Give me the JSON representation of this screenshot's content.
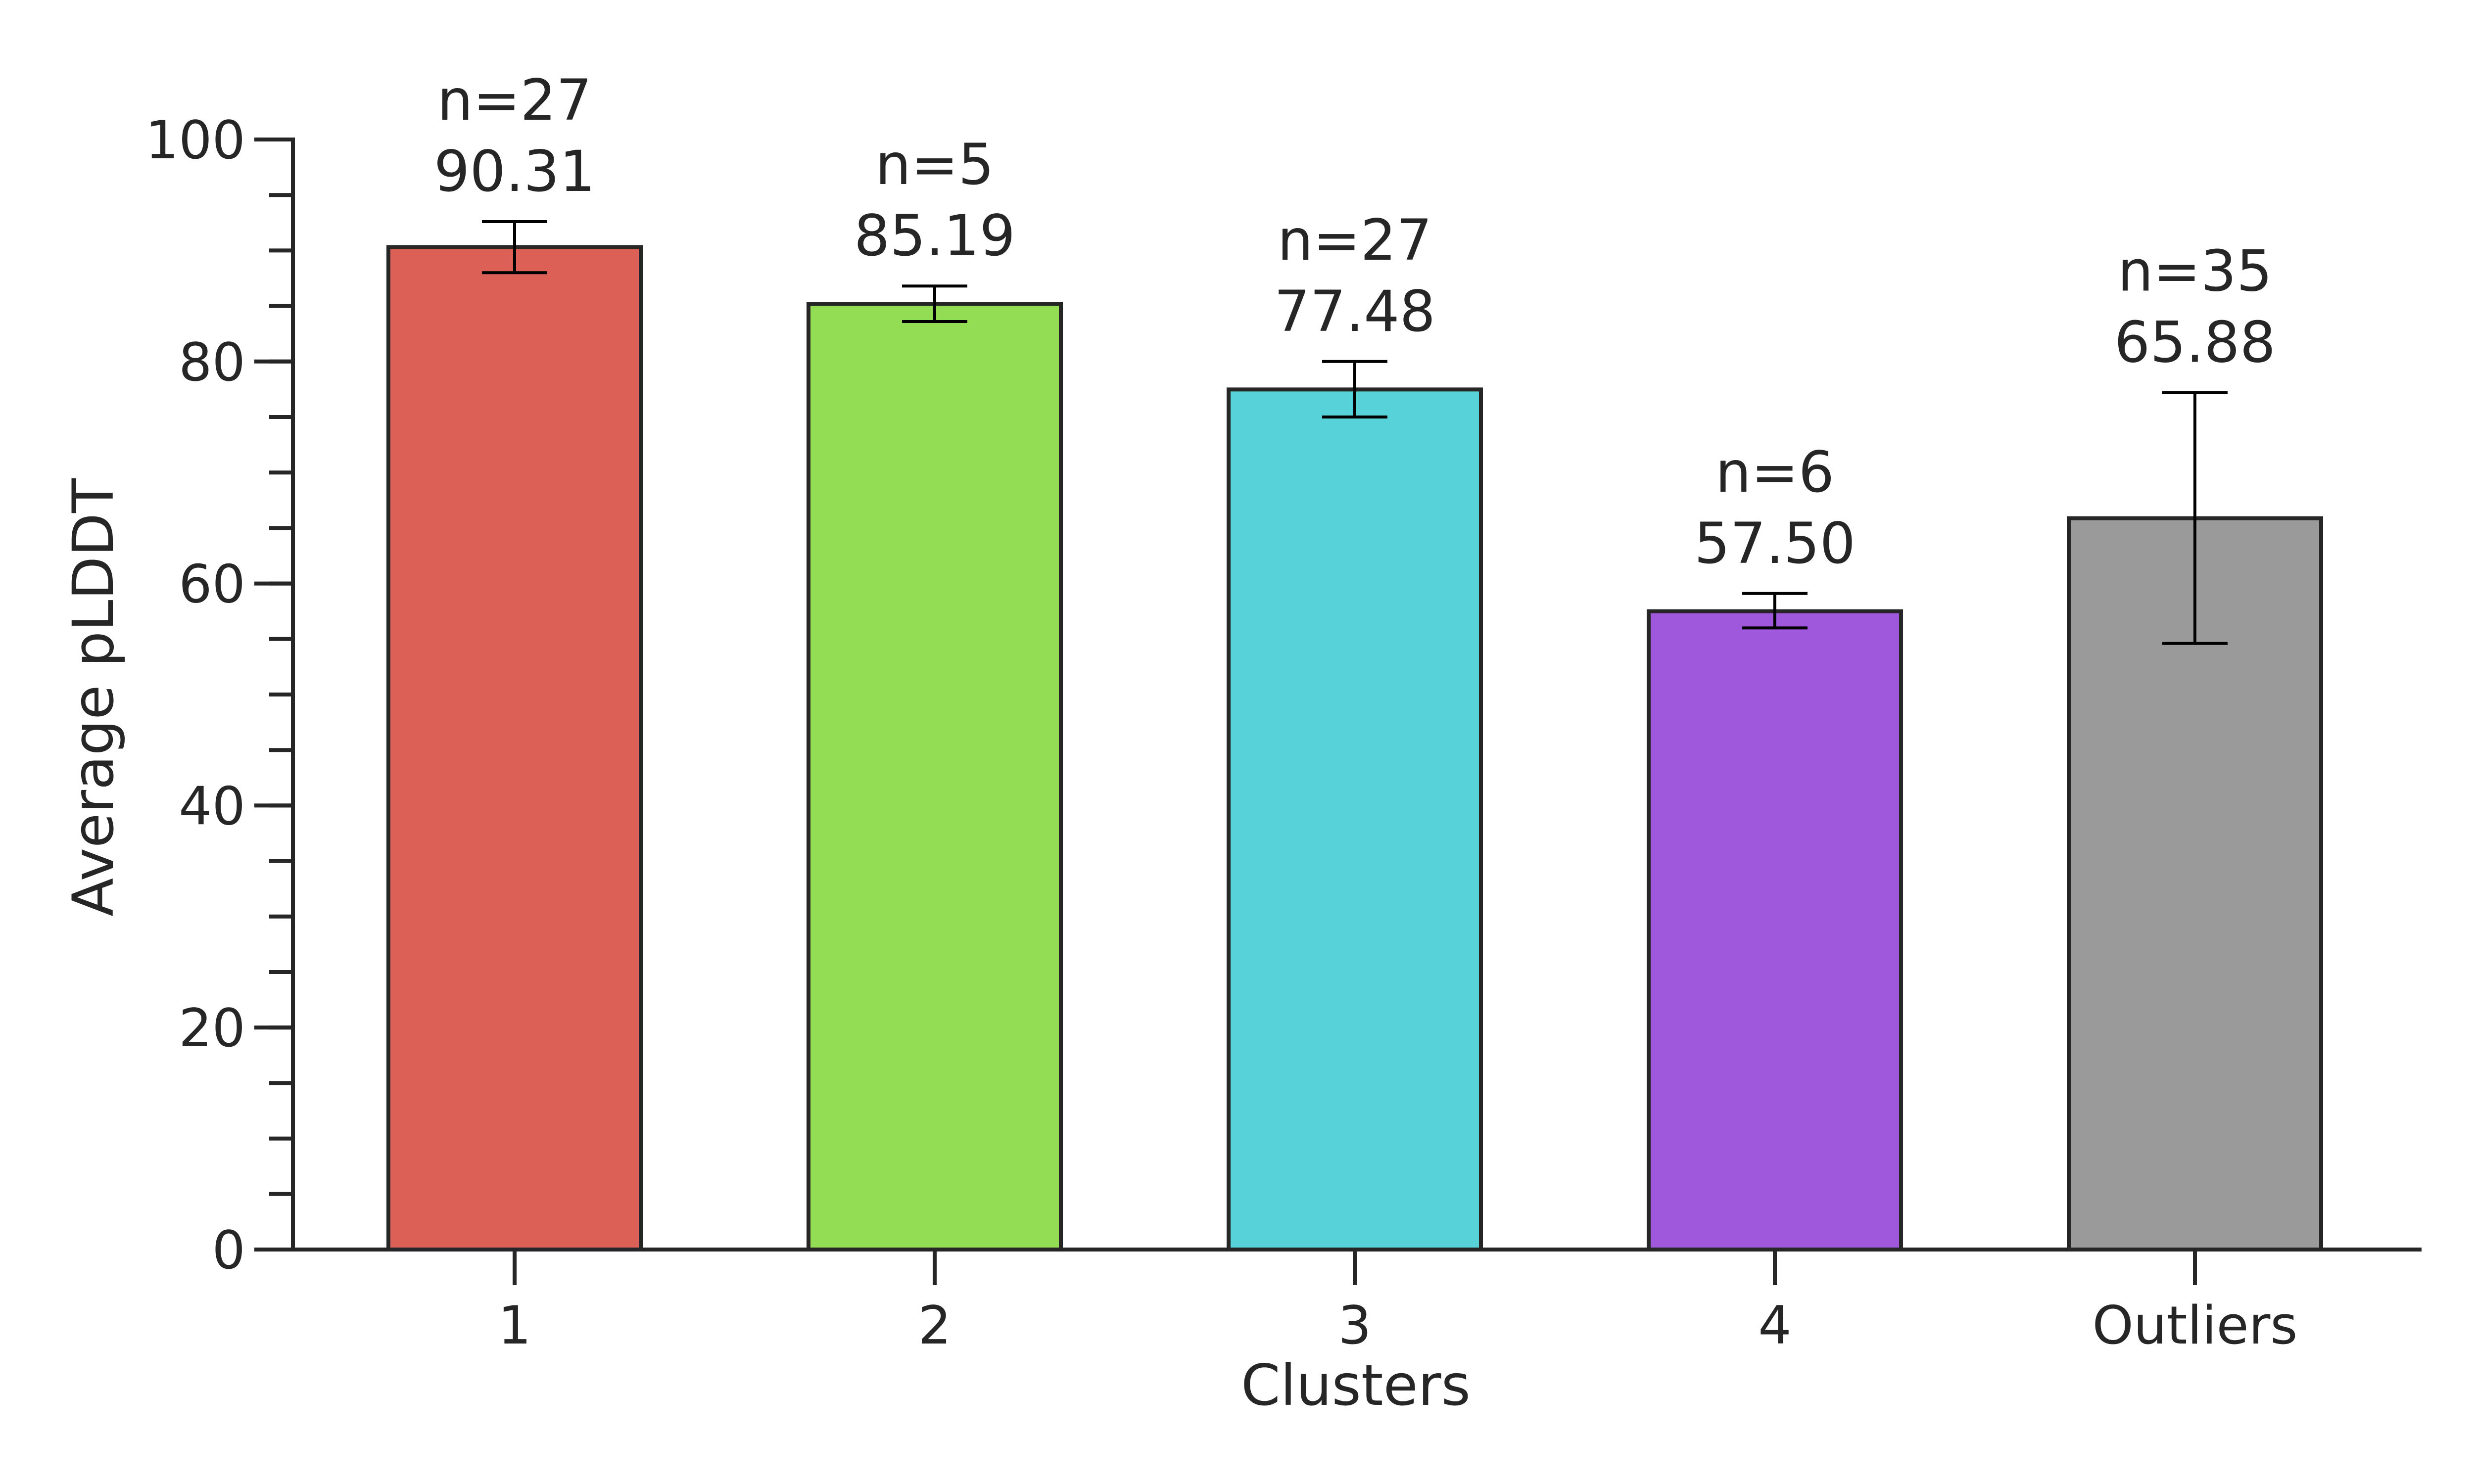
{
  "chart_data": {
    "type": "bar",
    "xlabel": "Clusters",
    "ylabel": "Average pLDDT",
    "ylim": [
      0,
      100
    ],
    "yticks": [
      0,
      20,
      40,
      60,
      80,
      100
    ],
    "yticks_minor_step": 5,
    "grid": false,
    "categories": [
      "1",
      "2",
      "3",
      "4",
      "Outliers"
    ],
    "values": [
      90.31,
      85.19,
      77.48,
      57.5,
      65.88
    ],
    "value_labels": [
      "90.31",
      "85.19",
      "77.48",
      "57.50",
      "65.88"
    ],
    "count_labels": [
      "n=27",
      "n=5",
      "n=27",
      "n=6",
      "n=35"
    ],
    "error_low": [
      88.0,
      83.6,
      75.0,
      56.0,
      54.6
    ],
    "error_high": [
      92.6,
      86.8,
      80.0,
      59.1,
      77.2
    ],
    "colors": [
      "#dc6055",
      "#93dd55",
      "#57d2d9",
      "#9f57dc",
      "#9a9a9a"
    ]
  }
}
